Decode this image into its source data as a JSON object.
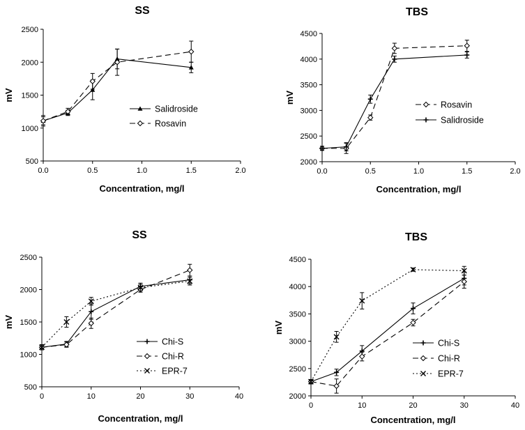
{
  "chart_data": [
    {
      "type": "line",
      "title": "SS",
      "xlabel": "Concentration, mg/l",
      "ylabel": "mV",
      "xlim": [
        0,
        2
      ],
      "ylim": [
        500,
        2500
      ],
      "xticks": [
        0.0,
        0.5,
        1.0,
        1.5,
        2.0
      ],
      "xtick_labels": [
        "0.0",
        "0.5",
        "1.0",
        "1.5",
        "2.0"
      ],
      "yticks": [
        500,
        1000,
        1500,
        2000,
        2500
      ],
      "ytick_labels": [
        "500",
        "1000",
        "1500",
        "2000",
        "2500"
      ],
      "legend": "center-right",
      "series": [
        {
          "name": "Salidroside",
          "style": "solid",
          "marker": "triangle",
          "x": [
            0,
            0.25,
            0.5,
            0.75,
            1.5
          ],
          "y": [
            1110,
            1230,
            1580,
            2050,
            1920
          ],
          "err": [
            60,
            40,
            150,
            150,
            80
          ]
        },
        {
          "name": "Rosavin",
          "style": "dashed",
          "marker": "diamond",
          "x": [
            0,
            0.25,
            0.5,
            0.75,
            1.5
          ],
          "y": [
            1110,
            1250,
            1710,
            2000,
            2160
          ],
          "err": [
            80,
            50,
            120,
            200,
            160
          ]
        }
      ]
    },
    {
      "type": "line",
      "title": "TBS",
      "xlabel": "Concentration, mg/l",
      "ylabel": "mV",
      "xlim": [
        0,
        2
      ],
      "ylim": [
        2000,
        4500
      ],
      "xticks": [
        0.0,
        0.5,
        1.0,
        1.5,
        2.0
      ],
      "xtick_labels": [
        "0.0",
        "0.5",
        "1.0",
        "1.5",
        "2.0"
      ],
      "yticks": [
        2000,
        2500,
        3000,
        3500,
        4000,
        4500
      ],
      "ytick_labels": [
        "2000",
        "2500",
        "3000",
        "3500",
        "4000",
        "4500"
      ],
      "legend": "center-right",
      "series": [
        {
          "name": "Rosavin",
          "style": "dashed",
          "marker": "diamond",
          "x": [
            0,
            0.25,
            0.5,
            0.75,
            1.5
          ],
          "y": [
            2260,
            2260,
            2860,
            4210,
            4260
          ],
          "err": [
            40,
            100,
            50,
            100,
            110
          ]
        },
        {
          "name": "Salidroside",
          "style": "solid",
          "marker": "plus",
          "x": [
            0,
            0.25,
            0.5,
            0.75,
            1.5
          ],
          "y": [
            2260,
            2290,
            3220,
            4000,
            4080
          ],
          "err": [
            40,
            80,
            80,
            60,
            60
          ]
        }
      ]
    },
    {
      "type": "line",
      "title": "SS",
      "xlabel": "Concentration, mg/l",
      "ylabel": "mV",
      "xlim": [
        0,
        40
      ],
      "ylim": [
        500,
        2500
      ],
      "xticks": [
        0,
        10,
        20,
        30,
        40
      ],
      "xtick_labels": [
        "0",
        "10",
        "20",
        "30",
        "40"
      ],
      "yticks": [
        500,
        1000,
        1500,
        2000,
        2500
      ],
      "ytick_labels": [
        "500",
        "1000",
        "1500",
        "2000",
        "2500"
      ],
      "legend": "bottom-right",
      "series": [
        {
          "name": "Chi-S",
          "style": "solid",
          "marker": "plus",
          "x": [
            0,
            5,
            10,
            20,
            30
          ],
          "y": [
            1110,
            1160,
            1660,
            2050,
            2150
          ],
          "err": [
            40,
            40,
            120,
            50,
            60
          ]
        },
        {
          "name": "Chi-R",
          "style": "dashed",
          "marker": "diamond",
          "x": [
            0,
            5,
            10,
            20,
            30
          ],
          "y": [
            1110,
            1150,
            1480,
            2000,
            2300
          ],
          "err": [
            40,
            40,
            80,
            40,
            90
          ]
        },
        {
          "name": "EPR-7",
          "style": "dotted",
          "marker": "x",
          "x": [
            0,
            5,
            10,
            20,
            30
          ],
          "y": [
            1110,
            1500,
            1820,
            2030,
            2130
          ],
          "err": [
            40,
            80,
            60,
            50,
            60
          ]
        }
      ]
    },
    {
      "type": "line",
      "title": "TBS",
      "xlabel": "Concentration, mg/l",
      "ylabel": "mV",
      "xlim": [
        0,
        40
      ],
      "ylim": [
        2000,
        4500
      ],
      "xticks": [
        0,
        10,
        20,
        30,
        40
      ],
      "xtick_labels": [
        "0",
        "10",
        "20",
        "30",
        "40"
      ],
      "yticks": [
        2000,
        2500,
        3000,
        3500,
        4000,
        4500
      ],
      "ytick_labels": [
        "2000",
        "2500",
        "3000",
        "3500",
        "4000",
        "4500"
      ],
      "legend": "bottom-right",
      "series": [
        {
          "name": "Chi-S",
          "style": "solid",
          "marker": "plus",
          "x": [
            0,
            5,
            10,
            20,
            30
          ],
          "y": [
            2260,
            2430,
            2820,
            3600,
            4150
          ],
          "err": [
            40,
            60,
            100,
            100,
            120
          ]
        },
        {
          "name": "Chi-R",
          "style": "dashed",
          "marker": "diamond",
          "x": [
            0,
            5,
            10,
            20,
            30
          ],
          "y": [
            2260,
            2180,
            2720,
            3340,
            4090
          ],
          "err": [
            40,
            130,
            80,
            60,
            120
          ]
        },
        {
          "name": "EPR-7",
          "style": "dotted",
          "marker": "x",
          "x": [
            0,
            5,
            10,
            20,
            30
          ],
          "y": [
            2260,
            3080,
            3740,
            4310,
            4290
          ],
          "err": [
            40,
            100,
            150,
            30,
            80
          ]
        }
      ]
    }
  ]
}
